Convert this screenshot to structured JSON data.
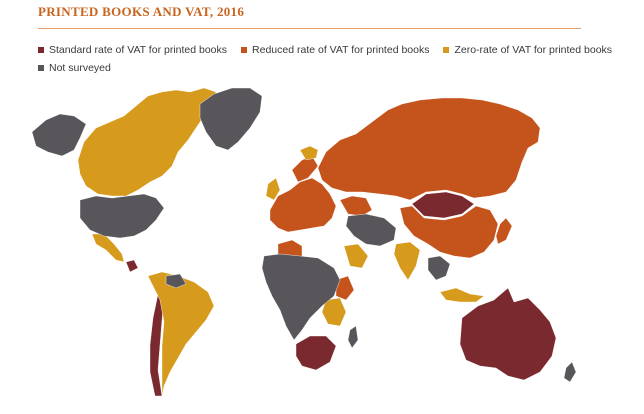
{
  "title": "PRINTED BOOKS AND VAT, 2016",
  "legend": [
    {
      "label": "Standard rate of VAT for printed books",
      "color": "#7a2a2e"
    },
    {
      "label": "Reduced rate of VAT for printed books",
      "color": "#c5531c"
    },
    {
      "label": "Zero-rate of VAT for printed books",
      "color": "#d69a1c"
    },
    {
      "label": "Not surveyed",
      "color": "#58565a"
    }
  ],
  "colors": {
    "standard": "#7a2a2e",
    "reduced": "#c5531c",
    "zero": "#d69a1c",
    "not_surveyed": "#58565a",
    "accent": "#c8641e"
  }
}
